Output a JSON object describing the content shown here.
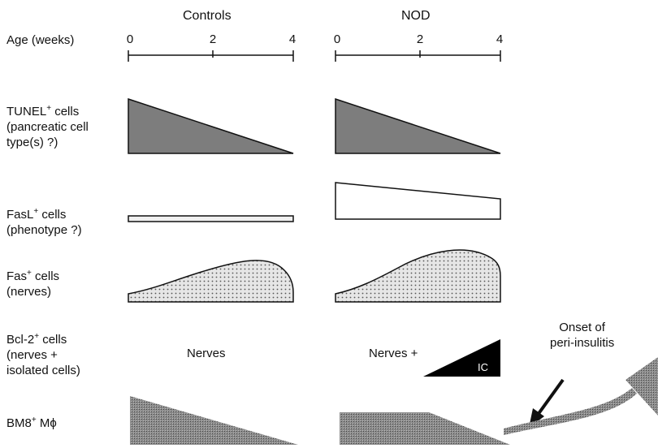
{
  "headers": {
    "controls": "Controls",
    "nod": "NOD"
  },
  "age_label": "Age (weeks)",
  "ticks": {
    "controls": [
      "0",
      "2",
      "4"
    ],
    "nod": [
      "0",
      "2",
      "4"
    ]
  },
  "rows": {
    "tunel": {
      "line1": "TUNEL",
      "sup1": "+",
      "line1b": " cells",
      "line2": "(pancreatic cell",
      "line3": "type(s) ?)"
    },
    "fasl": {
      "line1": "FasL",
      "sup1": "+",
      "line1b": " cells",
      "line2": "(phenotype ?)"
    },
    "fas": {
      "line1": "Fas",
      "sup1": "+",
      "line1b": " cells",
      "line2": "(nerves)"
    },
    "bcl2": {
      "line1": "Bcl-2",
      "sup1": "+",
      "line1b": " cells",
      "line2": "(nerves +",
      "line3": "isolated cells)"
    },
    "bm8": {
      "line1": "BM8",
      "sup1": "+",
      "line1b": " Mϕ"
    }
  },
  "bcl2_controls_text": "Nerves",
  "bcl2_nod_text": "Nerves +",
  "ic_label": "IC",
  "annotation": {
    "line1": "Onset of",
    "line2": "peri-insulitis"
  },
  "colors": {
    "tunel_fill": "#7d7d7d",
    "ic_fill": "#000000",
    "dot_fill": "#e6e6e6",
    "hatch_fill": "#8c8c8c",
    "arrow_fill": "#8a8a8a"
  }
}
